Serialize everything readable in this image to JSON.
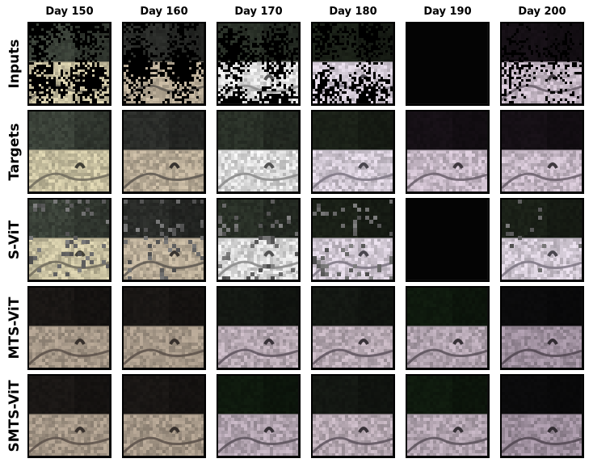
{
  "figure": {
    "columns": [
      "Day 150",
      "Day 160",
      "Day 170",
      "Day 180",
      "Day 190",
      "Day 200"
    ],
    "rows": [
      "Inputs",
      "Targets",
      "S-ViT",
      "MTS-ViT",
      "SMTS-ViT"
    ]
  },
  "style": {
    "tile_border": "#000000",
    "mask_color": "#000000",
    "palettes": {
      "bright_dry": {
        "sky": "#3b4239",
        "ground": "#c9c1a1",
        "road": "#6e6a5c"
      },
      "muted_dry": {
        "sky": "#2b2d2a",
        "ground": "#b9ac97",
        "road": "#5d5750"
      },
      "overexposed": {
        "sky": "#2a3128",
        "ground": "#dcdcdc",
        "road": "#8a8a8a"
      },
      "pink_cool": {
        "sky": "#1b2118",
        "ground": "#d2c9d5",
        "road": "#7c7683"
      },
      "dim_purple": {
        "sky": "#161016",
        "ground": "#c7b9c7",
        "road": "#6a5f6b"
      },
      "pred_brown": {
        "sky": "#1a1715",
        "ground": "#a69888",
        "road": "#5b5049"
      },
      "pred_pink": {
        "sky": "#141813",
        "ground": "#b8aab4",
        "road": "#5e545e"
      },
      "pred_green": {
        "sky": "#0f1a0e",
        "ground": "#b2a4b0",
        "road": "#5a515a"
      },
      "pred_dark": {
        "sky": "#0b0b0c",
        "ground": "#9e8f9e",
        "road": "#514751"
      }
    }
  }
}
